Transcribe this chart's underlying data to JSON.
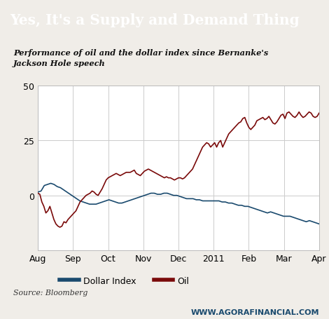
{
  "title": "Yes, It's a Supply and Demand Thing",
  "subtitle": "Performance of oil and the dollar index since Bernanke's\nJackson Hole speech",
  "source": "Source: Bloomberg",
  "watermark": "WWW.AGORAFINANCIAL.COM",
  "title_bg_color": "#1e4060",
  "title_text_color": "#ffffff",
  "plot_bg_color": "#ffffff",
  "outer_bg_color": "#f0ede8",
  "grid_color": "#cccccc",
  "dollar_color": "#1a4a6e",
  "oil_color": "#7a0a0a",
  "ylim": [
    -25,
    50
  ],
  "yticks": [
    0,
    25,
    50
  ],
  "ytick_labels": [
    "0",
    "25",
    "50"
  ],
  "xlabel_months": [
    "Aug",
    "Sep",
    "Oct",
    "Nov",
    "Dec",
    "2011",
    "Feb",
    "Mar",
    "Apr"
  ],
  "legend_labels": [
    "Dollar Index",
    "Oil"
  ],
  "dollar_index": [
    1.5,
    2.0,
    4.5,
    5.0,
    5.5,
    5.0,
    4.0,
    3.5,
    2.5,
    1.5,
    0.5,
    -0.5,
    -1.5,
    -2.5,
    -3.0,
    -3.5,
    -4.0,
    -4.0,
    -4.0,
    -3.5,
    -3.0,
    -2.5,
    -2.0,
    -2.5,
    -3.0,
    -3.5,
    -3.5,
    -3.0,
    -2.5,
    -2.0,
    -1.5,
    -1.0,
    -0.5,
    0.0,
    0.5,
    1.0,
    1.0,
    0.5,
    0.5,
    1.0,
    1.0,
    0.5,
    0.0,
    0.0,
    -0.5,
    -1.0,
    -1.5,
    -1.5,
    -1.5,
    -2.0,
    -2.0,
    -2.5,
    -2.5,
    -2.5,
    -2.5,
    -2.5,
    -2.5,
    -3.0,
    -3.0,
    -3.5,
    -3.5,
    -4.0,
    -4.5,
    -4.5,
    -5.0,
    -5.0,
    -5.5,
    -6.0,
    -6.5,
    -7.0,
    -7.5,
    -8.0,
    -7.5,
    -8.0,
    -8.5,
    -9.0,
    -9.5,
    -9.5,
    -9.5,
    -10.0,
    -10.5,
    -11.0,
    -11.5,
    -12.0,
    -11.5,
    -12.0,
    -12.5,
    -13.0
  ],
  "oil": [
    1.0,
    0.5,
    -3.0,
    -5.0,
    -8.0,
    -7.0,
    -5.0,
    -8.0,
    -11.0,
    -13.0,
    -14.0,
    -14.5,
    -14.0,
    -12.0,
    -12.5,
    -11.0,
    -10.0,
    -9.0,
    -8.0,
    -7.0,
    -5.0,
    -3.0,
    -2.0,
    -1.0,
    0.0,
    0.5,
    1.0,
    2.0,
    1.5,
    0.5,
    0.0,
    1.5,
    3.0,
    5.0,
    7.0,
    8.0,
    8.5,
    9.0,
    9.5,
    10.0,
    9.5,
    9.0,
    9.5,
    10.0,
    10.5,
    10.5,
    10.5,
    11.0,
    11.5,
    10.0,
    9.5,
    9.0,
    10.0,
    11.0,
    11.5,
    12.0,
    11.5,
    11.0,
    10.5,
    10.0,
    9.5,
    9.0,
    8.5,
    8.0,
    8.5,
    8.0,
    8.0,
    7.5,
    7.0,
    7.5,
    8.0,
    8.0,
    7.5,
    8.0,
    9.0,
    10.0,
    11.0,
    12.0,
    14.0,
    16.0,
    18.0,
    20.0,
    22.0,
    23.0,
    24.0,
    23.5,
    22.0,
    23.0,
    24.0,
    22.0,
    24.0,
    25.0,
    22.0,
    24.0,
    26.0,
    28.0,
    29.0,
    30.0,
    31.0,
    32.0,
    33.0,
    33.5,
    35.0,
    35.5,
    33.0,
    31.0,
    30.0,
    31.0,
    32.0,
    34.0,
    34.5,
    35.0,
    35.5,
    34.5,
    35.0,
    36.0,
    34.5,
    33.0,
    32.5,
    33.5,
    35.0,
    36.5,
    37.0,
    35.0,
    37.5,
    38.0,
    37.0,
    36.0,
    35.5,
    36.5,
    38.0,
    36.5,
    35.5,
    36.0,
    37.0,
    38.0,
    37.5,
    36.0,
    35.5,
    36.0,
    37.5
  ]
}
